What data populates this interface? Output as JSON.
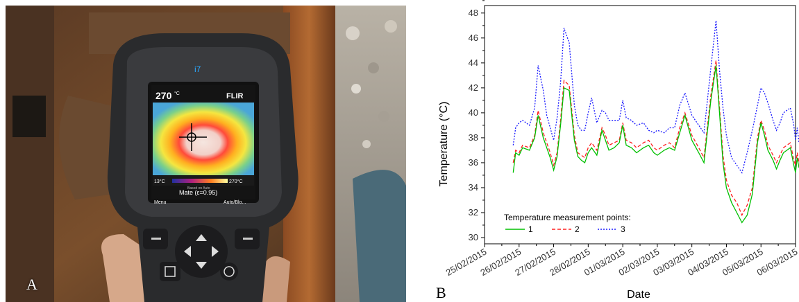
{
  "panels": {
    "a": {
      "letter": "A"
    },
    "b": {
      "letter": "B"
    }
  },
  "camera": {
    "model": "i7",
    "brand": "FLIR",
    "temp_top": "270",
    "temp_unit": "°C",
    "scale_min": "13°C",
    "scale_max": "270°C",
    "mode_line": "Mate (ε=0.95)",
    "small_line": "Based on Auto",
    "softkey_left": "Menu",
    "softkey_right": "Auto/Blo..."
  },
  "chart_data": {
    "type": "line",
    "title": "",
    "xlabel": "Date",
    "ylabel": "Temperature (°C)",
    "ylim": [
      29.5,
      48.6
    ],
    "yticks": [
      30,
      32,
      34,
      36,
      38,
      40,
      42,
      44,
      46,
      48
    ],
    "xlim": [
      "25/02/2015",
      "06/03/2015"
    ],
    "xticks": [
      "25/02/2015",
      "26/02/2015",
      "27/02/2015",
      "28/02/2015",
      "01/03/2015",
      "02/03/2015",
      "03/03/2015",
      "04/03/2015",
      "05/03/2015",
      "06/03/2015"
    ],
    "legend_title": "Temperature measurement points:",
    "legend_position": "bottom-left",
    "series": [
      {
        "name": "1",
        "color": "#00c000",
        "dash": "solid",
        "x": [
          0.83,
          0.9,
          1.0,
          1.1,
          1.3,
          1.45,
          1.55,
          1.7,
          1.8,
          1.9,
          2.0,
          2.1,
          2.2,
          2.3,
          2.45,
          2.6,
          2.7,
          2.8,
          2.9,
          3.0,
          3.1,
          3.25,
          3.4,
          3.5,
          3.6,
          3.75,
          3.9,
          4.0,
          4.1,
          4.25,
          4.4,
          4.6,
          4.75,
          4.9,
          5.0,
          5.2,
          5.35,
          5.5,
          5.65,
          5.8,
          6.0,
          6.2,
          6.35,
          6.55,
          6.7,
          6.8,
          6.9,
          7.0,
          7.15,
          7.3,
          7.45,
          7.6,
          7.75,
          7.9,
          8.0,
          8.1,
          8.2,
          8.35,
          8.45,
          8.55,
          8.65,
          8.75,
          8.85,
          8.95,
          9.0,
          9.05,
          9.1
        ],
        "values": [
          35.2,
          36.8,
          36.6,
          37.2,
          37.0,
          38.0,
          39.8,
          38.0,
          37.2,
          36.4,
          35.4,
          36.5,
          39.0,
          42.0,
          41.8,
          37.8,
          36.5,
          36.2,
          36.0,
          36.8,
          37.2,
          36.6,
          38.6,
          37.8,
          37.0,
          37.2,
          37.6,
          39.0,
          37.4,
          37.2,
          36.8,
          37.2,
          37.4,
          36.8,
          36.6,
          37.0,
          37.2,
          37.0,
          38.4,
          39.8,
          37.8,
          36.8,
          36.0,
          41.0,
          43.8,
          40.0,
          36.0,
          34.0,
          32.8,
          32.0,
          31.2,
          31.8,
          33.5,
          37.6,
          39.2,
          38.2,
          37.0,
          36.2,
          35.5,
          36.2,
          36.8,
          37.0,
          37.2,
          35.8,
          35.2,
          36.4,
          35.6
        ]
      },
      {
        "name": "2",
        "color": "#ff2020",
        "dash": "dashed",
        "x": [
          0.83,
          0.9,
          1.0,
          1.1,
          1.3,
          1.45,
          1.55,
          1.7,
          1.8,
          1.9,
          2.0,
          2.1,
          2.2,
          2.3,
          2.45,
          2.6,
          2.7,
          2.8,
          2.9,
          3.0,
          3.1,
          3.25,
          3.4,
          3.5,
          3.6,
          3.75,
          3.9,
          4.0,
          4.1,
          4.25,
          4.4,
          4.6,
          4.75,
          4.9,
          5.0,
          5.2,
          5.35,
          5.5,
          5.65,
          5.8,
          6.0,
          6.2,
          6.35,
          6.55,
          6.7,
          6.8,
          6.9,
          7.0,
          7.15,
          7.3,
          7.45,
          7.6,
          7.75,
          7.9,
          8.0,
          8.1,
          8.2,
          8.35,
          8.45,
          8.55,
          8.65,
          8.75,
          8.85,
          8.95,
          9.0,
          9.05,
          9.1
        ],
        "values": [
          36.0,
          37.0,
          36.8,
          37.4,
          37.2,
          38.2,
          40.2,
          38.4,
          37.6,
          36.8,
          35.8,
          36.8,
          39.4,
          42.6,
          42.2,
          38.2,
          36.8,
          36.6,
          36.4,
          37.2,
          37.6,
          37.0,
          38.8,
          38.2,
          37.4,
          37.6,
          37.8,
          39.2,
          37.8,
          37.6,
          37.2,
          37.6,
          37.8,
          37.2,
          37.0,
          37.4,
          37.6,
          37.2,
          38.8,
          40.0,
          38.2,
          37.2,
          36.4,
          41.4,
          44.2,
          40.4,
          36.6,
          34.6,
          33.4,
          32.8,
          31.8,
          32.6,
          34.0,
          38.0,
          39.4,
          38.6,
          37.4,
          36.6,
          36.0,
          36.6,
          37.2,
          37.4,
          37.6,
          36.2,
          35.8,
          36.8,
          36.0
        ]
      },
      {
        "name": "3",
        "color": "#1a1aff",
        "dash": "dotted",
        "x": [
          0.83,
          0.9,
          1.0,
          1.1,
          1.3,
          1.45,
          1.55,
          1.7,
          1.8,
          1.9,
          2.0,
          2.1,
          2.2,
          2.3,
          2.45,
          2.6,
          2.7,
          2.8,
          2.9,
          3.0,
          3.1,
          3.25,
          3.4,
          3.5,
          3.6,
          3.75,
          3.9,
          4.0,
          4.1,
          4.25,
          4.4,
          4.6,
          4.75,
          4.9,
          5.0,
          5.2,
          5.35,
          5.5,
          5.65,
          5.8,
          6.0,
          6.2,
          6.35,
          6.55,
          6.7,
          6.8,
          6.9,
          7.0,
          7.15,
          7.3,
          7.45,
          7.6,
          7.75,
          7.9,
          8.0,
          8.1,
          8.2,
          8.35,
          8.45,
          8.55,
          8.65,
          8.75,
          8.85,
          8.95,
          9.0,
          9.05,
          9.1
        ],
        "values": [
          37.4,
          38.8,
          39.2,
          39.4,
          39.0,
          40.4,
          43.8,
          41.8,
          39.8,
          38.8,
          37.8,
          39.6,
          42.4,
          46.8,
          45.6,
          40.6,
          39.0,
          38.6,
          38.6,
          40.0,
          41.2,
          39.2,
          40.2,
          40.0,
          39.4,
          39.4,
          39.4,
          41.0,
          39.6,
          39.4,
          39.0,
          39.2,
          38.6,
          38.4,
          38.6,
          38.4,
          38.8,
          38.8,
          40.6,
          41.6,
          39.8,
          39.0,
          38.4,
          43.6,
          47.4,
          43.4,
          40.4,
          38.2,
          36.4,
          35.8,
          35.2,
          36.8,
          38.6,
          40.6,
          42.0,
          41.6,
          40.8,
          39.4,
          38.6,
          39.2,
          40.0,
          40.2,
          40.4,
          39.0,
          37.8,
          38.8,
          37.6
        ]
      }
    ]
  }
}
